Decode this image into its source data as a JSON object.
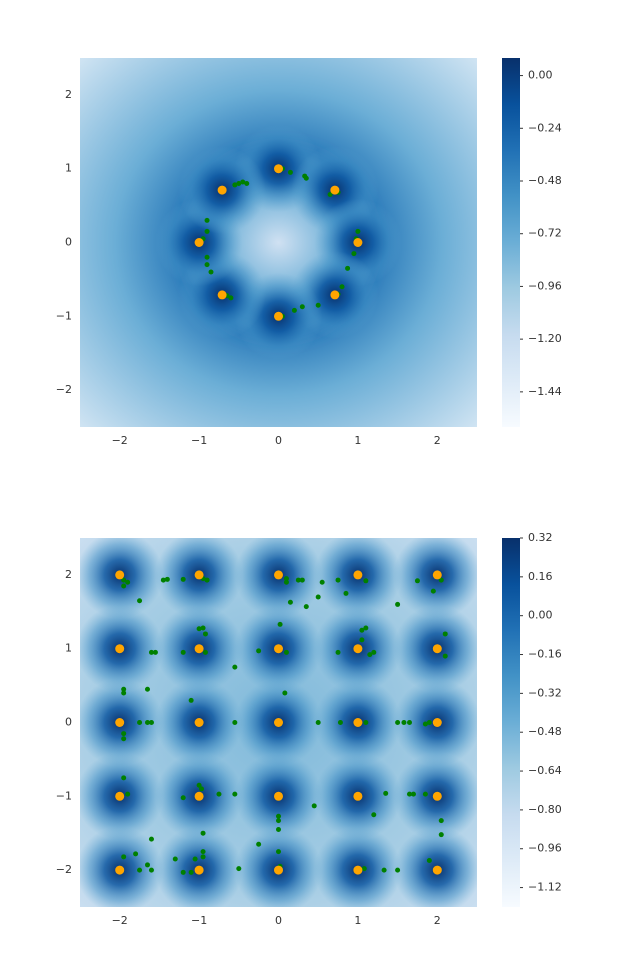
{
  "chart_data": [
    {
      "type": "contour",
      "xlim": [
        -2.5,
        2.5
      ],
      "ylim": [
        -2.5,
        2.5
      ],
      "xticks": [
        {
          "value": -2,
          "label": "−2"
        },
        {
          "value": -1,
          "label": "−1"
        },
        0,
        1,
        2
      ],
      "yticks": [
        {
          "value": -2,
          "label": "−2"
        },
        {
          "value": -1,
          "label": "−1"
        },
        0,
        1,
        2
      ],
      "colormap": [
        "#f7fbff",
        "#deebf7",
        "#c6dbef",
        "#9ecae1",
        "#6baed6",
        "#4292c6",
        "#2171b5",
        "#08519c",
        "#08306b"
      ],
      "colorbar": {
        "lim": [
          -1.6,
          0.08
        ],
        "ticks": [
          {
            "value": 0,
            "label": "0.00"
          },
          {
            "value": -0.24,
            "label": "−0.24"
          },
          {
            "value": -0.48,
            "label": "−0.48"
          },
          {
            "value": -0.72,
            "label": "−0.72"
          },
          {
            "value": -0.96,
            "label": "−0.96"
          },
          {
            "value": -1.2,
            "label": "−1.20"
          },
          {
            "value": -1.44,
            "label": "−1.44"
          }
        ]
      },
      "series": [
        {
          "color": "green",
          "x": [
            0.05,
            0.15,
            0.33,
            0.35,
            -0.4,
            -0.45,
            -0.5,
            -0.55,
            0.65,
            0.75,
            1,
            0.98,
            0.95,
            0.87,
            0.8,
            0.75,
            0.5,
            0.3,
            0.2,
            0.05,
            -0.6,
            -0.65,
            -0.85,
            -0.9,
            -0.9,
            -0.95,
            -0.9,
            -0.9,
            -0.7
          ],
          "y": [
            1,
            0.95,
            0.9,
            0.87,
            0.8,
            0.82,
            0.8,
            0.78,
            0.65,
            0.68,
            0.15,
            0.05,
            -0.15,
            -0.35,
            -0.6,
            -0.7,
            -0.85,
            -0.87,
            -0.92,
            -1,
            -0.75,
            -0.72,
            -0.4,
            -0.3,
            -0.2,
            0.05,
            0.15,
            0.3,
            0.72
          ]
        },
        {
          "color": "orange",
          "x": [
            0,
            0.71,
            1,
            0.71,
            0,
            -0.71,
            -1,
            -0.71
          ],
          "y": [
            1,
            0.71,
            0,
            -0.71,
            -1,
            -0.71,
            0,
            0.71
          ]
        }
      ]
    },
    {
      "type": "contour",
      "xlim": [
        -2.5,
        2.5
      ],
      "ylim": [
        -2.5,
        2.5
      ],
      "xticks": [
        {
          "value": -2,
          "label": "−2"
        },
        {
          "value": -1,
          "label": "−1"
        },
        0,
        1,
        2
      ],
      "yticks": [
        {
          "value": -2,
          "label": "−2"
        },
        {
          "value": -1,
          "label": "−1"
        },
        0,
        1,
        2
      ],
      "colormap": [
        "#f7fbff",
        "#deebf7",
        "#c6dbef",
        "#9ecae1",
        "#6baed6",
        "#4292c6",
        "#2171b5",
        "#08519c",
        "#08306b"
      ],
      "colorbar": {
        "lim": [
          -1.2,
          0.32
        ],
        "ticks": [
          0.32,
          0.16,
          {
            "value": 0,
            "label": "0.00"
          },
          {
            "value": -0.16,
            "label": "−0.16"
          },
          {
            "value": -0.32,
            "label": "−0.32"
          },
          {
            "value": -0.48,
            "label": "−0.48"
          },
          {
            "value": -0.64,
            "label": "−0.64"
          },
          {
            "value": -0.8,
            "label": "−0.80"
          },
          {
            "value": -0.96,
            "label": "−0.96"
          },
          {
            "value": -1.12,
            "label": "−1.12"
          }
        ]
      },
      "series": [
        {
          "color": "green",
          "x": [
            -1.95,
            -1.9,
            -1.95,
            -1.75,
            -1.45,
            -1.4,
            -1.2,
            -0.95,
            -0.9,
            0.1,
            0.1,
            0.25,
            0.3,
            0.35,
            0.15,
            0.5,
            0.55,
            0.75,
            0.85,
            1.1,
            1.5,
            1.75,
            1.95,
            2.05,
            -1.6,
            -1.55,
            -1.2,
            -1,
            -0.95,
            -0.92,
            -0.92,
            -0.55,
            -0.25,
            0.02,
            0.1,
            0.75,
            1.05,
            1.05,
            1.1,
            1.15,
            1.2,
            2.1,
            2.1,
            -1.95,
            -1.95,
            -1.65,
            -1.75,
            -1.65,
            -1.6,
            -1.95,
            -1.95,
            -1.1,
            -0.55,
            0.08,
            0.5,
            0.78,
            1.1,
            1.5,
            1.58,
            1.65,
            1.85,
            1.9,
            -1.95,
            -1.9,
            -1.2,
            -1,
            -0.97,
            -0.75,
            -0.55,
            0,
            0,
            0,
            0.45,
            1.35,
            1.2,
            1.65,
            1.7,
            1.85,
            2.05,
            2.05,
            -1.95,
            -1.8,
            -1.6,
            -1.65,
            -1.6,
            -1.75,
            -1.3,
            -1.2,
            -1.05,
            -0.95,
            -0.95,
            -0.95,
            -1.1,
            -0.5,
            -0.25,
            0,
            0.02,
            1.08,
            1.33,
            1.5,
            1.9
          ],
          "y": [
            1.93,
            1.9,
            1.85,
            1.65,
            1.93,
            1.94,
            1.94,
            1.95,
            1.93,
            1.95,
            1.9,
            1.93,
            1.93,
            1.57,
            1.63,
            1.7,
            1.9,
            1.93,
            1.75,
            1.92,
            1.6,
            1.92,
            1.78,
            1.93,
            0.95,
            0.95,
            0.95,
            1.27,
            1.28,
            1.2,
            0.95,
            0.75,
            0.97,
            1.33,
            0.95,
            0.95,
            1.12,
            1.25,
            1.28,
            0.92,
            0.95,
            1.2,
            0.9,
            0.45,
            0.4,
            0.45,
            0,
            0,
            0,
            -0.15,
            -0.22,
            0.3,
            0,
            0.4,
            0,
            0,
            0,
            0,
            0,
            0,
            -0.02,
            0,
            -0.75,
            -0.97,
            -1.02,
            -0.85,
            -0.9,
            -0.97,
            -0.97,
            -1.27,
            -1.45,
            -1.33,
            -1.13,
            -0.96,
            -1.25,
            -0.97,
            -0.97,
            -0.97,
            -1.33,
            -1.52,
            -1.82,
            -1.78,
            -1.58,
            -1.93,
            -2,
            -2,
            -1.85,
            -2.03,
            -1.85,
            -1.82,
            -1.75,
            -1.5,
            -2.03,
            -1.98,
            -1.65,
            -1.75,
            -1.95,
            -1.98,
            -2,
            -2,
            -1.87
          ]
        },
        {
          "color": "orange",
          "x": [
            -2,
            -1,
            0,
            1,
            2,
            -2,
            -1,
            0,
            1,
            2,
            -2,
            -1,
            0,
            1,
            2,
            -2,
            -1,
            0,
            1,
            2,
            -2,
            -1,
            0,
            1,
            2
          ],
          "y": [
            2,
            2,
            2,
            2,
            2,
            1,
            1,
            1,
            1,
            1,
            0,
            0,
            0,
            0,
            0,
            -1,
            -1,
            -1,
            -1,
            -1,
            -2,
            -2,
            -2,
            -2,
            -2
          ]
        }
      ]
    }
  ]
}
